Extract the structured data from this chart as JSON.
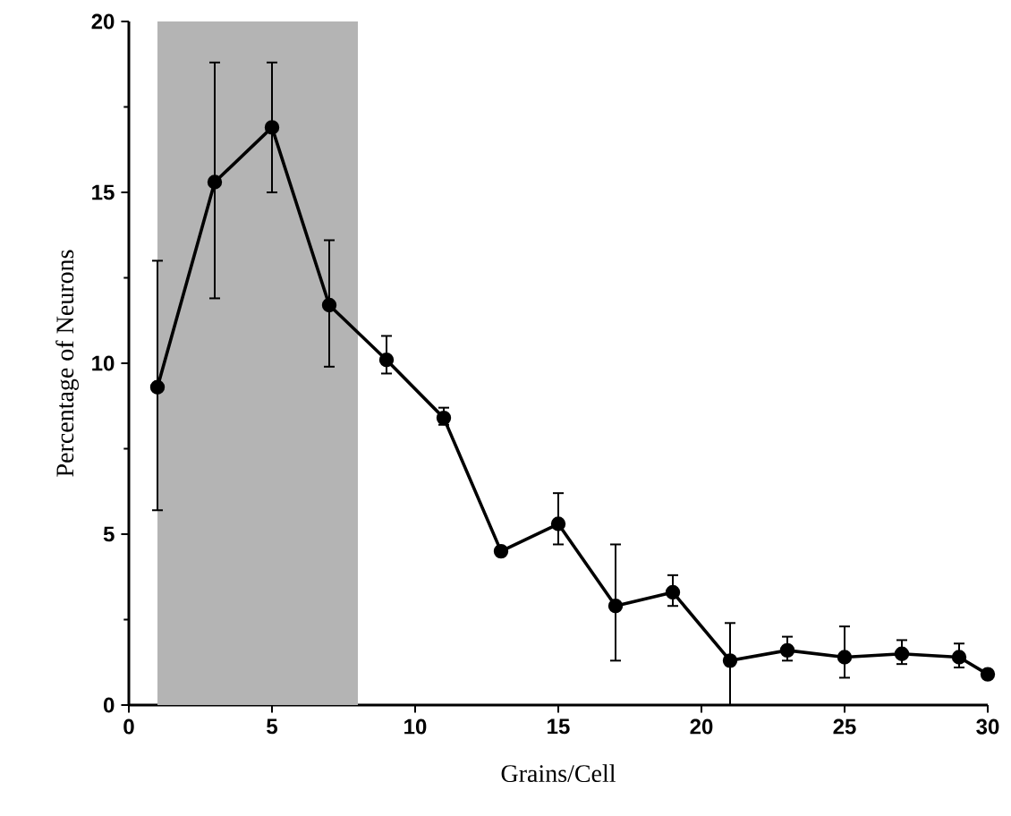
{
  "chart_data": {
    "type": "line",
    "xlabel": "Grains/Cell",
    "ylabel": "Percentage of Neurons",
    "x": [
      1,
      3,
      5,
      7,
      9,
      11,
      13,
      15,
      17,
      19,
      21,
      23,
      25,
      27,
      29,
      30
    ],
    "series": [
      {
        "color": "#000000",
        "values": [
          9.3,
          15.3,
          16.9,
          11.7,
          10.1,
          8.4,
          4.5,
          5.3,
          2.9,
          3.3,
          1.3,
          1.6,
          1.4,
          1.5,
          1.4,
          0.9
        ],
        "errors": [
          [
            5.7,
            13.0
          ],
          [
            11.9,
            18.8
          ],
          [
            15.0,
            18.8
          ],
          [
            9.9,
            13.6
          ],
          [
            9.7,
            10.8
          ],
          [
            8.2,
            8.7
          ],
          null,
          [
            4.7,
            6.2
          ],
          [
            1.3,
            4.7
          ],
          [
            2.9,
            3.8
          ],
          [
            0,
            2.4
          ],
          [
            1.3,
            2.0
          ],
          [
            0.8,
            2.3
          ],
          [
            1.2,
            1.9
          ],
          [
            1.1,
            1.8
          ],
          null
        ]
      }
    ],
    "bands": [
      {
        "axis": "x",
        "from": 1,
        "to": 8,
        "color": "#b4b4b4"
      }
    ],
    "xlim": [
      0,
      30
    ],
    "ylim": [
      0,
      20
    ],
    "xticks": [
      0,
      5,
      10,
      15,
      20,
      25,
      30
    ],
    "yticks": [
      0,
      5,
      10,
      15,
      20
    ],
    "marker": "circle",
    "line_style": "solid"
  }
}
